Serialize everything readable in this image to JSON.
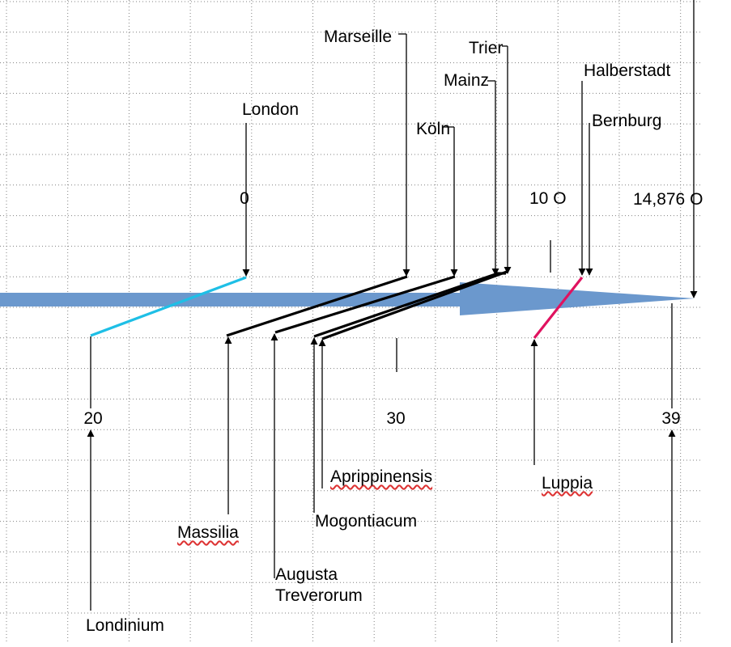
{
  "colors": {
    "grid": "#808080",
    "arrow_fill": "#6b98cd",
    "london_link": "#1ebfe6",
    "luppia_link": "#e0125f",
    "roman_link": "#000000"
  },
  "top_labels": {
    "marseille": "Marseille",
    "trier": "Trier",
    "mainz": "Mainz",
    "halberstadt": "Halberstadt",
    "koln": "Köln",
    "bernburg": "Bernburg",
    "london": "London"
  },
  "top_scale": {
    "zero": "0",
    "ten": "10 O",
    "end": "14,876 O"
  },
  "bottom_scale": {
    "twenty": "20",
    "thirty": "30",
    "thirtynine": "39"
  },
  "bottom_labels": {
    "aprippinensis": "Aprippinensis",
    "luppia": "Luppia",
    "mogontiacum": "Mogontiacum",
    "massilia": "Massilia",
    "augusta_line1": "Augusta",
    "augusta_line2": "Treverorum",
    "londinium": "Londinium"
  }
}
